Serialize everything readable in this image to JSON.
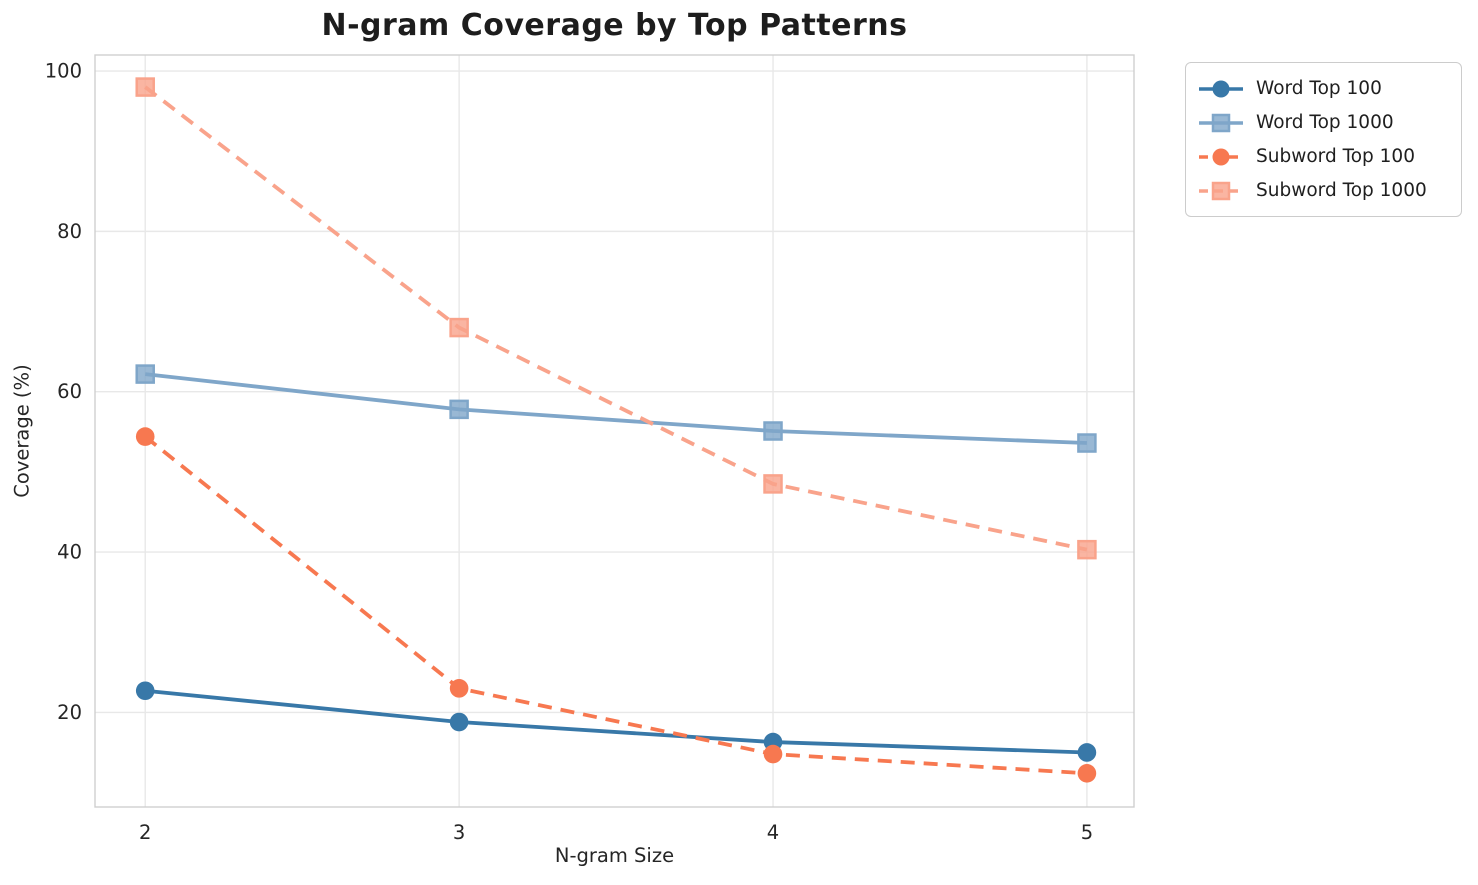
{
  "chart_data": {
    "type": "line",
    "title": "N-gram Coverage by Top Patterns",
    "xlabel": "N-gram Size",
    "ylabel": "Coverage (%)",
    "x": [
      2,
      3,
      4,
      5
    ],
    "xticks": [
      "2",
      "3",
      "4",
      "5"
    ],
    "yticks": [
      20,
      40,
      60,
      80,
      100
    ],
    "xlim": [
      1.84,
      5.15
    ],
    "ylim": [
      8.2,
      102.0
    ],
    "grid": true,
    "legend_position": "outside-top-right",
    "colors": {
      "grid": "#e8e8e8",
      "spine": "#cfcfcf",
      "tick_text": "#262626",
      "title_text": "#1d1d1d",
      "legend_border": "#cccccc"
    },
    "series": [
      {
        "name": "Word Top 100",
        "values": [
          22.7,
          18.8,
          16.3,
          15.0
        ],
        "color": "#3878a8",
        "marker": "circle",
        "dash": "solid"
      },
      {
        "name": "Word Top 1000",
        "values": [
          62.2,
          57.8,
          55.1,
          53.6
        ],
        "color": "#7fa6c9",
        "marker": "square",
        "dash": "solid"
      },
      {
        "name": "Subword Top 100",
        "values": [
          54.4,
          23.0,
          14.8,
          12.4
        ],
        "color": "#f77850",
        "marker": "circle",
        "dash": "dashed"
      },
      {
        "name": "Subword Top 1000",
        "values": [
          98.0,
          68.0,
          48.5,
          40.3
        ],
        "color": "#f9a38b",
        "marker": "square",
        "dash": "dashed"
      }
    ]
  }
}
